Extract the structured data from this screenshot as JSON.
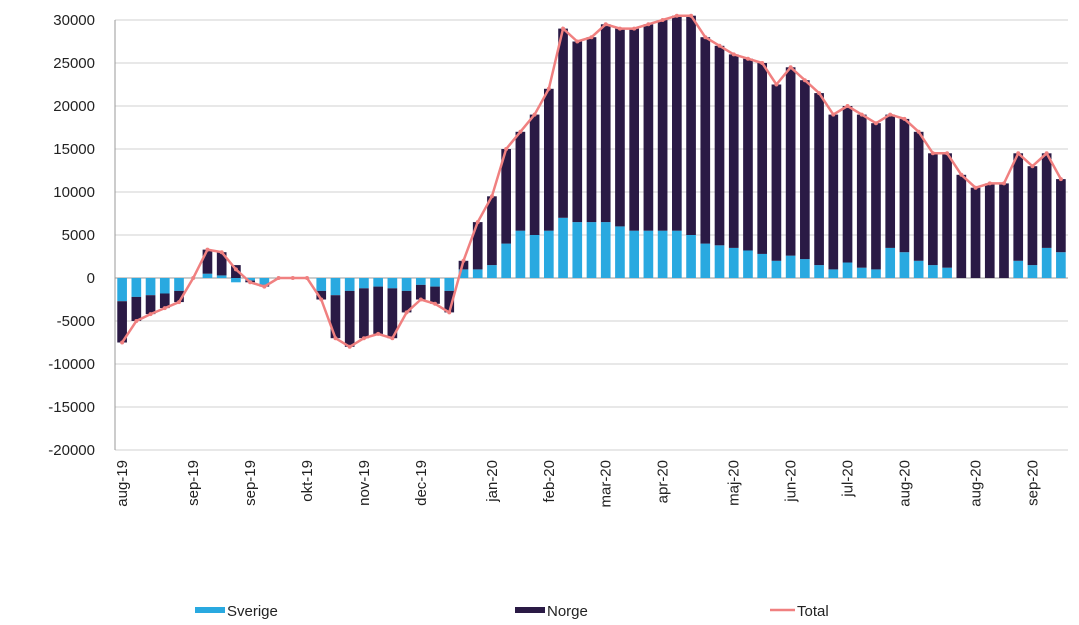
{
  "chart_data": {
    "type": "stacked-bar-line",
    "categories": [
      "aug-19",
      null,
      null,
      null,
      null,
      "sep-19",
      null,
      null,
      null,
      "sep-19",
      null,
      null,
      null,
      "okt-19",
      null,
      null,
      null,
      "nov-19",
      null,
      null,
      null,
      "dec-19",
      null,
      null,
      null,
      null,
      "jan-20",
      null,
      null,
      null,
      "feb-20",
      null,
      null,
      null,
      "mar-20",
      null,
      null,
      null,
      "apr-20",
      null,
      null,
      null,
      null,
      "maj-20",
      null,
      null,
      null,
      "jun-20",
      null,
      null,
      null,
      "jul-20",
      null,
      null,
      null,
      "aug-20",
      null,
      null,
      null,
      null,
      "aug-20",
      null,
      null,
      null,
      "sep-20",
      null,
      null
    ],
    "series": [
      {
        "name": "Sverige",
        "color": "#29a9e0",
        "kind": "bar",
        "values": [
          -2700,
          -2200,
          -2000,
          -1800,
          -1500,
          0,
          500,
          300,
          -500,
          -300,
          -800,
          0,
          0,
          0,
          -1500,
          -2000,
          -1500,
          -1200,
          -1000,
          -1200,
          -1500,
          -800,
          -1000,
          -1500,
          1000,
          1000,
          1500,
          4000,
          5500,
          5000,
          5500,
          7000,
          6500,
          6500,
          6500,
          6000,
          5500,
          5500,
          5500,
          5500,
          5000,
          4000,
          3800,
          3500,
          3200,
          2800,
          2000,
          2600,
          2200,
          1500,
          1000,
          1800,
          1200,
          1000,
          3500,
          3000,
          2000,
          1500,
          1200,
          0,
          0,
          0,
          0,
          2000,
          1500,
          3500,
          3000
        ]
      },
      {
        "name": "Norge",
        "color": "#2a1a45",
        "kind": "bar",
        "values": [
          -4800,
          -2800,
          -2200,
          -1700,
          -1300,
          0,
          2800,
          2700,
          1500,
          -200,
          -200,
          0,
          0,
          0,
          -1000,
          -5000,
          -6500,
          -5800,
          -5500,
          -5800,
          -2500,
          -1700,
          -2000,
          -2500,
          1000,
          5500,
          8000,
          11000,
          11500,
          14000,
          16500,
          22000,
          21000,
          21500,
          23000,
          23000,
          23500,
          24000,
          24500,
          25000,
          25500,
          24000,
          23200,
          22500,
          22300,
          22200,
          20500,
          21900,
          20800,
          20000,
          18000,
          18200,
          17800,
          17000,
          15500,
          15500,
          15000,
          13000,
          13300,
          12000,
          10500,
          11000,
          11000,
          12500,
          11500,
          11000,
          8500
        ]
      },
      {
        "name": "Total",
        "color": "#f08080",
        "kind": "line",
        "values": [
          -7500,
          -5000,
          -4200,
          -3500,
          -2800,
          0,
          3300,
          3000,
          1000,
          -500,
          -1000,
          0,
          0,
          0,
          -2500,
          -7000,
          -8000,
          -7000,
          -6500,
          -7000,
          -4000,
          -2500,
          -3000,
          -4000,
          2000,
          6500,
          9500,
          15000,
          17000,
          19000,
          22000,
          29000,
          27500,
          28000,
          29500,
          29000,
          29000,
          29500,
          30000,
          30500,
          30500,
          28000,
          27000,
          26000,
          25500,
          25000,
          22500,
          24500,
          23000,
          21500,
          19000,
          20000,
          19000,
          18000,
          19000,
          18500,
          17000,
          14500,
          14500,
          12000,
          10500,
          11000,
          11000,
          14500,
          13000,
          14500,
          11500
        ]
      }
    ],
    "ylim": [
      -20000,
      30000
    ],
    "yticks": [
      -20000,
      -15000,
      -10000,
      -5000,
      0,
      5000,
      10000,
      15000,
      20000,
      25000,
      30000
    ],
    "grid": true,
    "legend": "bottom"
  }
}
